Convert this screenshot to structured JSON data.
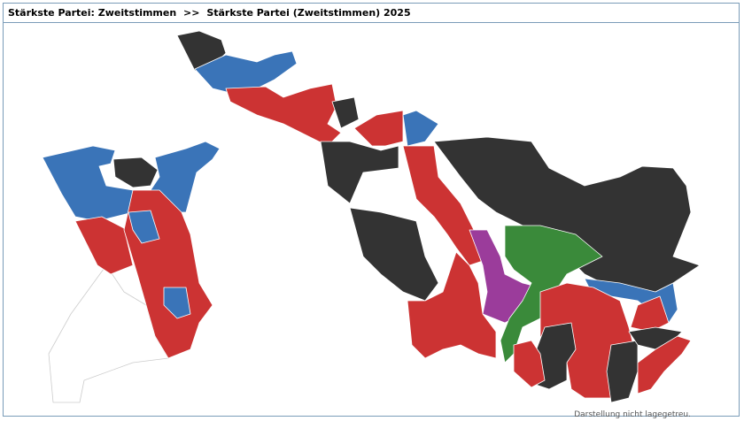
{
  "header": {
    "title": "Stärkste Partei: Zweitstimmen",
    "separator": ">>",
    "subtitle": "Stärkste Partei (Zweitstimmen) 2025"
  },
  "footer": {
    "note": "Darstellung nicht lagegetreu."
  }
}
